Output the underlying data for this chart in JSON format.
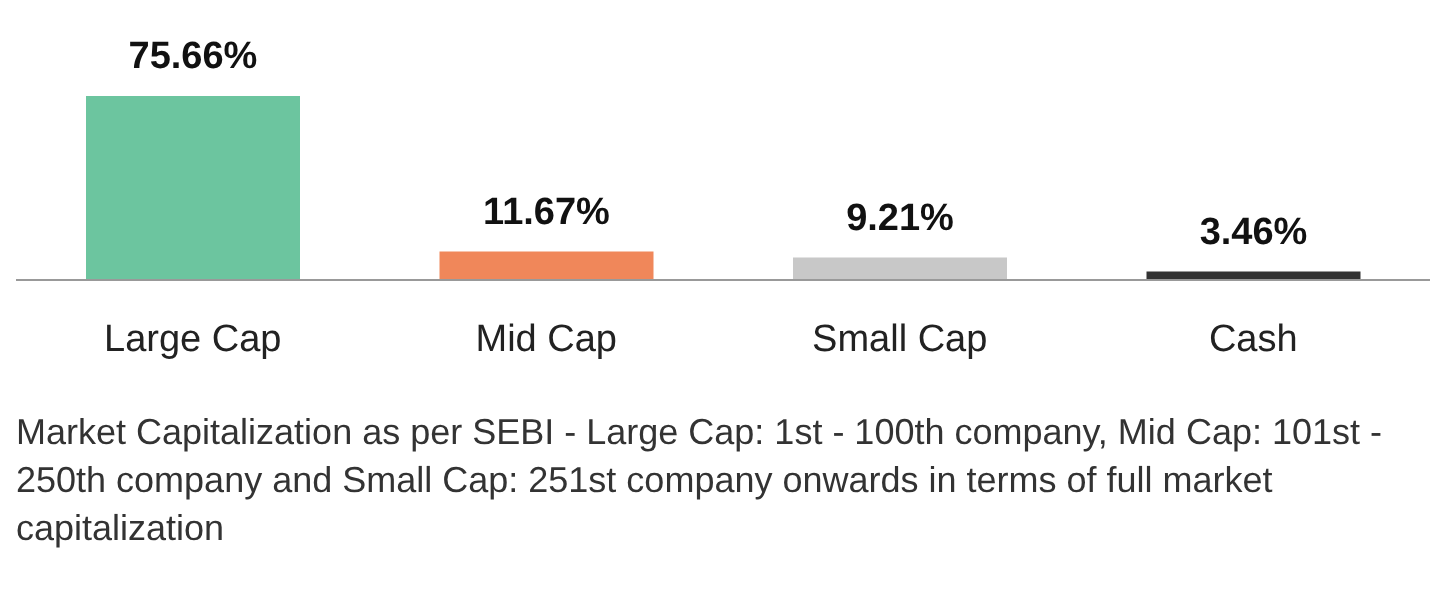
{
  "chart_data": {
    "type": "bar",
    "categories": [
      "Large Cap",
      "Mid Cap",
      "Small Cap",
      "Cash"
    ],
    "values": [
      75.66,
      11.67,
      9.21,
      3.46
    ],
    "colors": [
      "#6cc59f",
      "#f0875a",
      "#c8c8c8",
      "#333333"
    ],
    "value_labels": [
      "75.66%",
      "11.67%",
      "9.21%",
      "3.46%"
    ],
    "grid": false,
    "legend": false,
    "annotations": [
      "Market Capitalization as per SEBI - Large Cap: 1st - 100th company, Mid Cap: 101st - 250th company and Small Cap: 251st company onwards in terms of full market capitalization"
    ]
  }
}
